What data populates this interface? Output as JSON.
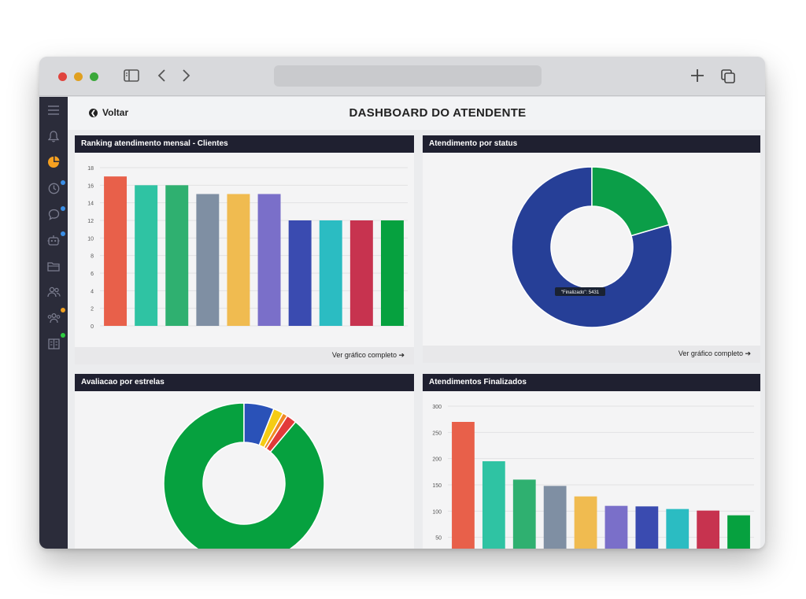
{
  "page": {
    "title": "DASHBOARD DO ATENDENTE",
    "back_label": "Voltar"
  },
  "sidebar": {
    "items": [
      {
        "icon": "menu-icon"
      },
      {
        "icon": "bell-icon"
      },
      {
        "icon": "pie-chart-icon",
        "active": true
      },
      {
        "icon": "clock-icon",
        "badge": "#3a8ee6"
      },
      {
        "icon": "chat-icon",
        "badge": "#3a8ee6"
      },
      {
        "icon": "robot-icon",
        "badge": "#3a8ee6"
      },
      {
        "icon": "folder-icon"
      },
      {
        "icon": "users-icon"
      },
      {
        "icon": "group-icon",
        "badge": "#f0a020"
      },
      {
        "icon": "building-icon",
        "badge": "#2ecc40"
      }
    ]
  },
  "panels": {
    "ranking": {
      "title": "Ranking atendimento mensal - Clientes",
      "footer_link": "Ver gráfico completo ➔"
    },
    "status": {
      "title": "Atendimento por status",
      "footer_link": "Ver gráfico completo ➔",
      "tooltip": "\"Finalizado\": 5431"
    },
    "stars": {
      "title": "Avaliacao por estrelas"
    },
    "finalizados": {
      "title": "Atendimentos Finalizados"
    }
  },
  "chart_data": [
    {
      "type": "bar",
      "title": "Ranking atendimento mensal - Clientes",
      "categories": [
        "",
        "",
        "",
        "",
        "",
        "",
        "",
        "",
        "",
        ""
      ],
      "values": [
        17,
        16,
        16,
        15,
        15,
        15,
        12,
        12,
        12,
        12
      ],
      "colors": [
        "#e8604a",
        "#2fc3a3",
        "#2fb070",
        "#7f8fa3",
        "#f0bb50",
        "#7a6fc9",
        "#3a4bb0",
        "#2bbcc2",
        "#c7334f",
        "#06a13f"
      ],
      "ylim": [
        0,
        18
      ],
      "yticks": [
        0,
        2,
        4,
        6,
        8,
        10,
        12,
        14,
        16,
        18
      ],
      "grid": true
    },
    {
      "type": "pie",
      "title": "Atendimento por status",
      "donut": true,
      "labels": [
        "Finalizado",
        ""
      ],
      "values": [
        5431,
        1400
      ],
      "colors": [
        "#263f97",
        "#0b9e48"
      ]
    },
    {
      "type": "pie",
      "title": "Avaliacao por estrelas",
      "donut": true,
      "values": [
        88,
        6,
        2,
        1,
        2
      ],
      "colors": [
        "#06a13f",
        "#2a52b8",
        "#f5cc14",
        "#f08a24",
        "#e23a3a"
      ]
    },
    {
      "type": "bar",
      "title": "Atendimentos Finalizados",
      "categories": [
        "",
        "",
        "",
        "",
        "",
        "",
        "",
        "",
        "",
        ""
      ],
      "values": [
        270,
        195,
        160,
        148,
        128,
        110,
        109,
        104,
        101,
        92
      ],
      "colors": [
        "#e8604a",
        "#2fc3a3",
        "#2fb070",
        "#7f8fa3",
        "#f0bb50",
        "#7a6fc9",
        "#3a4bb0",
        "#2bbcc2",
        "#c7334f",
        "#06a13f"
      ],
      "ylim": [
        0,
        300
      ],
      "yticks": [
        50,
        100,
        150,
        200,
        250,
        300
      ],
      "grid": true
    }
  ]
}
